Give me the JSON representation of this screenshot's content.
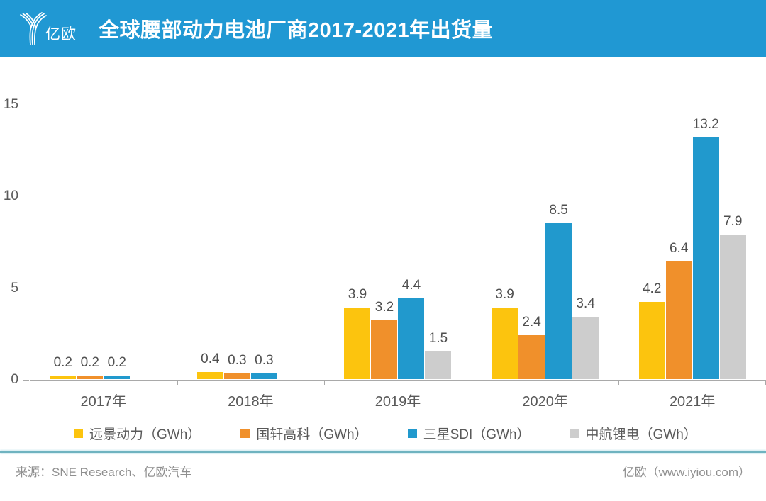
{
  "header": {
    "logo_text": "亿欧",
    "title": "全球腰部动力电池厂商2017-2021年出货量"
  },
  "chart_data": {
    "type": "bar",
    "title": "全球腰部动力电池厂商2017-2021年出货量",
    "categories": [
      "2017年",
      "2018年",
      "2019年",
      "2020年",
      "2021年"
    ],
    "series": [
      {
        "name": "远景动力（GWh）",
        "color": "#fcc40e",
        "values": [
          0.2,
          0.4,
          3.9,
          3.9,
          4.2
        ]
      },
      {
        "name": "国轩高科（GWh）",
        "color": "#f0902b",
        "values": [
          0.2,
          0.3,
          3.2,
          2.4,
          6.4
        ]
      },
      {
        "name": "三星SDI（GWh）",
        "color": "#2199cd",
        "values": [
          0.2,
          0.3,
          4.4,
          8.5,
          13.2
        ]
      },
      {
        "name": "中航锂电（GWh）",
        "color": "#cdcdcd",
        "values": [
          null,
          null,
          1.5,
          3.4,
          7.9
        ]
      }
    ],
    "y_ticks": [
      0,
      5,
      10,
      15
    ],
    "ylim": [
      0,
      15
    ],
    "grid": false,
    "legend_position": "bottom",
    "value_labels": true
  },
  "footer": {
    "source": "来源：SNE Research、亿欧汽车",
    "site": "亿欧（www.iyiou.com）"
  },
  "colors": {
    "header_bg": "#2098d3",
    "divider": "#6fb3c0",
    "axis": "#a9a9a9",
    "label_text": "#595959",
    "footer_text": "#8f8f8f"
  }
}
